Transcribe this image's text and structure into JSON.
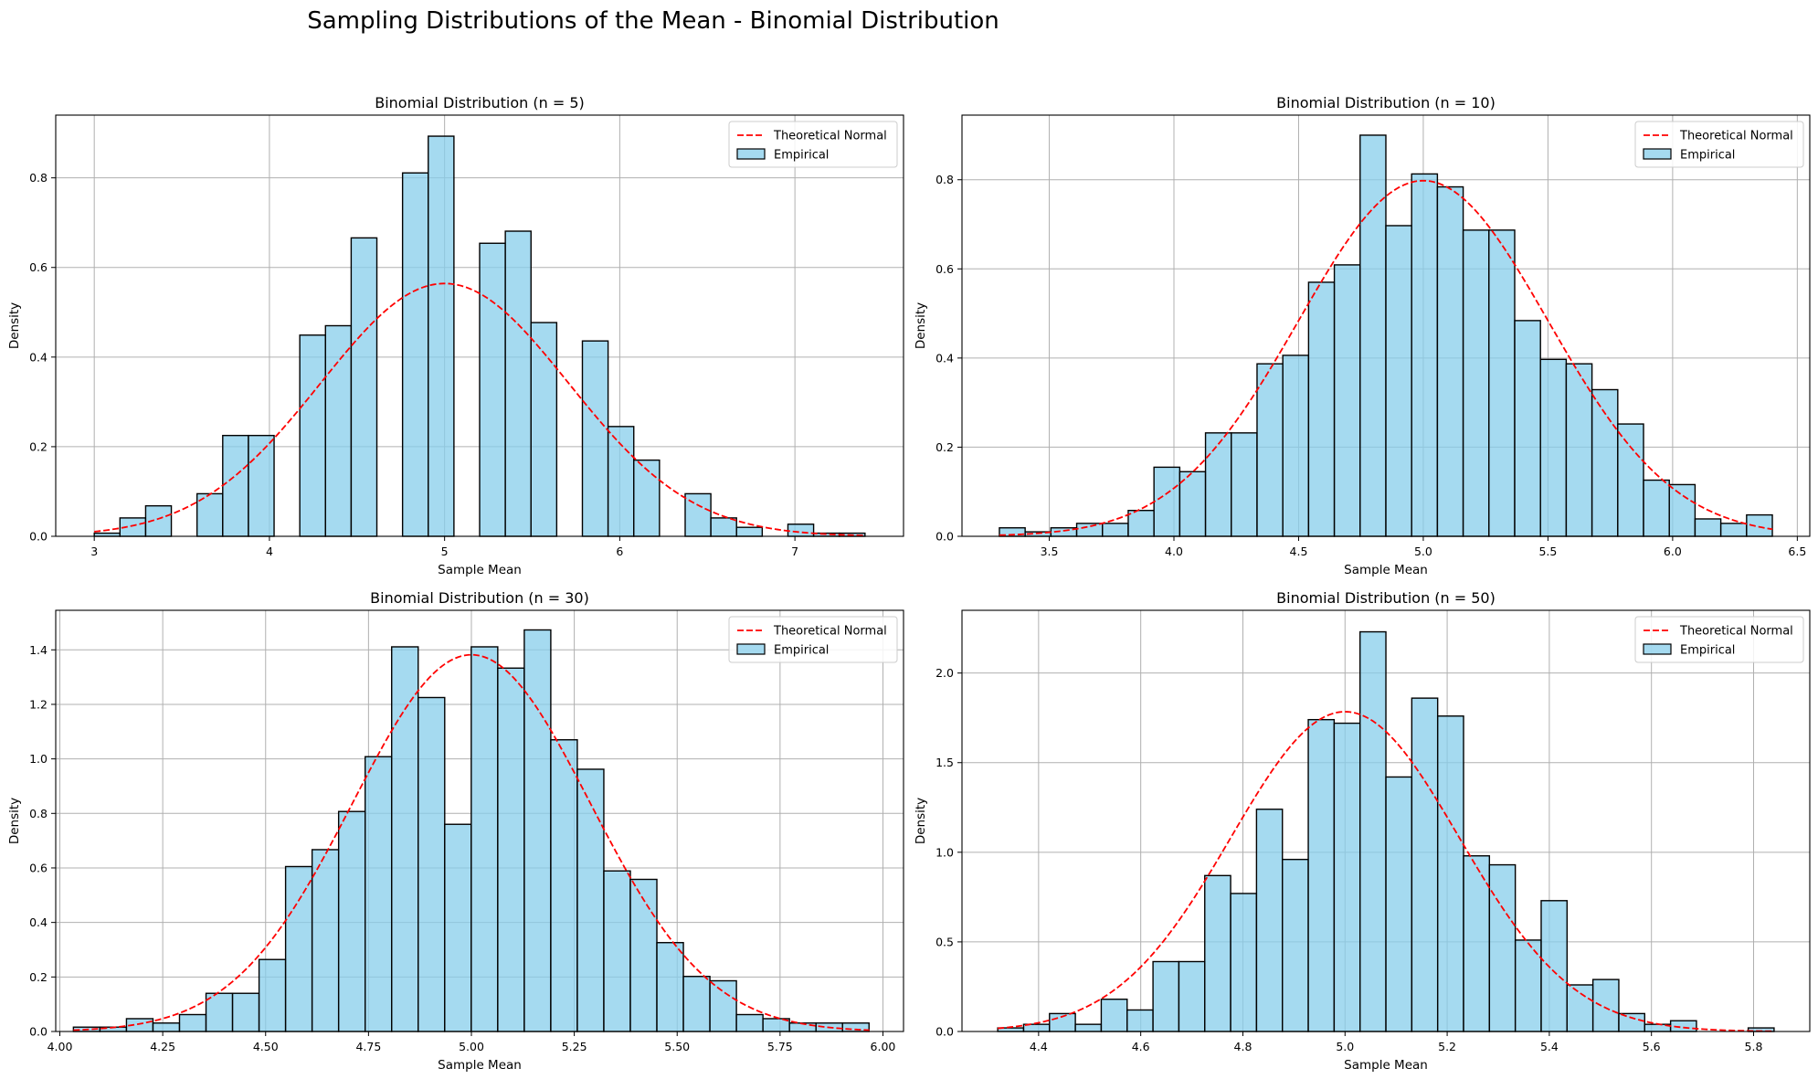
{
  "figure": {
    "suptitle": "Sampling Distributions of the Mean - Binomial Distribution"
  },
  "chart_data": [
    {
      "type": "bar",
      "title": "Binomial Distribution (n = 5)",
      "xlabel": "Sample Mean",
      "ylabel": "Density",
      "xlim": [
        2.78,
        7.62
      ],
      "ylim": [
        0,
        0.94
      ],
      "xticks": [
        3,
        4,
        5,
        6,
        7
      ],
      "yticks": [
        0.0,
        0.2,
        0.4,
        0.6,
        0.8
      ],
      "tick_decimals": {
        "x": 0,
        "y": 1
      },
      "grid": true,
      "legend": {
        "position": "top-right",
        "entries": [
          "Theoretical Normal",
          "Empirical"
        ]
      },
      "theoretical_normal": {
        "mean": 5.0,
        "sd": 0.7071,
        "x_range": [
          3.0,
          7.4
        ],
        "color": "#ff0000"
      },
      "histogram": {
        "bin_start": 3.0,
        "bin_width": 0.14667,
        "color": "#87ceeb",
        "heights": [
          0.007,
          0.041,
          0.068,
          0.0,
          0.095,
          0.225,
          0.225,
          0.0,
          0.449,
          0.47,
          0.666,
          0.0,
          0.811,
          0.893,
          0.0,
          0.654,
          0.681,
          0.477,
          0.0,
          0.436,
          0.245,
          0.17,
          0.0,
          0.095,
          0.041,
          0.02,
          0.0,
          0.027,
          0.007,
          0.007
        ]
      }
    },
    {
      "type": "bar",
      "title": "Binomial Distribution (n = 10)",
      "xlabel": "Sample Mean",
      "ylabel": "Density",
      "xlim": [
        3.15,
        6.55
      ],
      "ylim": [
        0,
        0.945
      ],
      "xticks": [
        3.5,
        4.0,
        4.5,
        5.0,
        5.5,
        6.0,
        6.5
      ],
      "yticks": [
        0.0,
        0.2,
        0.4,
        0.6,
        0.8
      ],
      "tick_decimals": {
        "x": 1,
        "y": 1
      },
      "grid": true,
      "legend": {
        "position": "top-right",
        "entries": [
          "Theoretical Normal",
          "Empirical"
        ]
      },
      "theoretical_normal": {
        "mean": 5.0,
        "sd": 0.5,
        "x_range": [
          3.3,
          6.4
        ],
        "color": "#ff0000"
      },
      "histogram": {
        "bin_start": 3.3,
        "bin_width": 0.10333,
        "color": "#87ceeb",
        "heights": [
          0.019,
          0.01,
          0.019,
          0.029,
          0.029,
          0.058,
          0.155,
          0.145,
          0.232,
          0.232,
          0.387,
          0.406,
          0.57,
          0.609,
          0.9,
          0.697,
          0.813,
          0.784,
          0.687,
          0.687,
          0.484,
          0.397,
          0.387,
          0.329,
          0.252,
          0.126,
          0.116,
          0.039,
          0.029,
          0.048
        ]
      }
    },
    {
      "type": "bar",
      "title": "Binomial Distribution (n = 30)",
      "xlabel": "Sample Mean",
      "ylabel": "Density",
      "xlim": [
        3.99,
        6.05
      ],
      "ylim": [
        0,
        1.545
      ],
      "xticks": [
        4.0,
        4.25,
        4.5,
        4.75,
        5.0,
        5.25,
        5.5,
        5.75,
        6.0
      ],
      "yticks": [
        0.0,
        0.2,
        0.4,
        0.6,
        0.8,
        1.0,
        1.2,
        1.4
      ],
      "tick_decimals": {
        "x": 2,
        "y": 1
      },
      "grid": true,
      "legend": {
        "position": "top-right",
        "entries": [
          "Theoretical Normal",
          "Empirical"
        ]
      },
      "theoretical_normal": {
        "mean": 5.0,
        "sd": 0.2887,
        "x_range": [
          4.033,
          5.967
        ],
        "color": "#ff0000"
      },
      "histogram": {
        "bin_start": 4.033,
        "bin_width": 0.06444,
        "color": "#87ceeb",
        "heights": [
          0.016,
          0.016,
          0.047,
          0.031,
          0.062,
          0.14,
          0.14,
          0.264,
          0.605,
          0.667,
          0.807,
          1.008,
          1.411,
          1.225,
          0.76,
          1.411,
          1.333,
          1.473,
          1.07,
          0.962,
          0.589,
          0.558,
          0.326,
          0.202,
          0.186,
          0.062,
          0.047,
          0.031,
          0.031,
          0.031
        ]
      }
    },
    {
      "type": "bar",
      "title": "Binomial Distribution (n = 50)",
      "xlabel": "Sample Mean",
      "ylabel": "Density",
      "xlim": [
        4.25,
        5.91
      ],
      "ylim": [
        0,
        2.35
      ],
      "xticks": [
        4.4,
        4.6,
        4.8,
        5.0,
        5.2,
        5.4,
        5.6,
        5.8
      ],
      "yticks": [
        0.0,
        0.5,
        1.0,
        1.5,
        2.0
      ],
      "tick_decimals": {
        "x": 1,
        "y": 1
      },
      "grid": true,
      "legend": {
        "position": "top-right",
        "entries": [
          "Theoretical Normal",
          "Empirical"
        ]
      },
      "theoretical_normal": {
        "mean": 5.0,
        "sd": 0.2236,
        "x_range": [
          4.32,
          5.84
        ],
        "color": "#ff0000"
      },
      "histogram": {
        "bin_start": 4.32,
        "bin_width": 0.05067,
        "color": "#87ceeb",
        "heights": [
          0.02,
          0.04,
          0.1,
          0.04,
          0.18,
          0.12,
          0.39,
          0.39,
          0.87,
          0.77,
          1.24,
          0.96,
          1.74,
          1.72,
          2.23,
          1.42,
          1.86,
          1.76,
          0.98,
          0.93,
          0.51,
          0.73,
          0.26,
          0.29,
          0.1,
          0.04,
          0.06,
          0.0,
          0.0,
          0.02
        ]
      }
    }
  ]
}
